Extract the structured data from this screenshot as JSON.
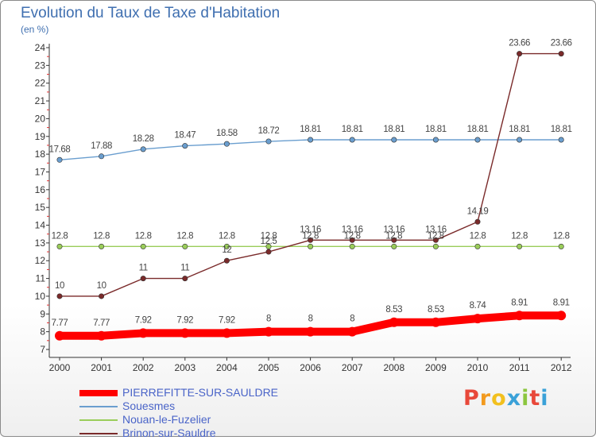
{
  "title": "Evolution du Taux de Taxe d'Habitation",
  "subtitle": "(en %)",
  "chart_data": {
    "type": "line",
    "title": "Evolution du Taux de Taxe d'Habitation",
    "ylabel": "(en %)",
    "xlabel": "",
    "x": [
      "2000",
      "2001",
      "2002",
      "2003",
      "2004",
      "2005",
      "2006",
      "2007",
      "2008",
      "2009",
      "2010",
      "2011",
      "2012"
    ],
    "ylim": [
      7,
      24
    ],
    "yticks": [
      "7",
      "8",
      "9",
      "10",
      "11",
      "12",
      "13",
      "14",
      "15",
      "16",
      "17",
      "18",
      "19",
      "20",
      "21",
      "22",
      "23",
      "24"
    ],
    "grid": false,
    "legend_position": "bottom-left",
    "series": [
      {
        "name": "PIERREFITTE-SUR-SAULDRE",
        "color": "#ff0000",
        "values": [
          7.77,
          7.77,
          7.92,
          7.92,
          7.92,
          8,
          8,
          8,
          8.53,
          8.53,
          8.74,
          8.91,
          8.91
        ],
        "labels": [
          "7.77",
          "7.77",
          "7.92",
          "7.92",
          "7.92",
          "8",
          "8",
          "8",
          "8.53",
          "8.53",
          "8.74",
          "8.91",
          "8.91"
        ]
      },
      {
        "name": "Souesmes",
        "color": "#6a9ecf",
        "values": [
          17.68,
          17.88,
          18.28,
          18.47,
          18.58,
          18.72,
          18.81,
          18.81,
          18.81,
          18.81,
          18.81,
          18.81,
          18.81
        ],
        "labels": [
          "17.68",
          "17.88",
          "18.28",
          "18.47",
          "18.58",
          "18.72",
          "18.81",
          "18.81",
          "18.81",
          "18.81",
          "18.81",
          "18.81",
          "18.81"
        ]
      },
      {
        "name": "Nouan-le-Fuzelier",
        "color": "#9acd5a",
        "values": [
          12.8,
          12.8,
          12.8,
          12.8,
          12.8,
          12.8,
          12.8,
          12.8,
          12.8,
          12.8,
          12.8,
          12.8,
          12.8
        ],
        "labels": [
          "12.8",
          "12.8",
          "12.8",
          "12.8",
          "12.8",
          "12.8",
          "12.8",
          "12.8",
          "12.8",
          "12.8",
          "12.8",
          "12.8",
          "12.8"
        ]
      },
      {
        "name": "Brinon-sur-Sauldre",
        "color": "#7a2a2a",
        "values": [
          10,
          10,
          11,
          11,
          12,
          12.5,
          13.16,
          13.16,
          13.16,
          13.16,
          14.19,
          23.66,
          23.66
        ],
        "labels": [
          "10",
          "10",
          "11",
          "11",
          "12",
          "12.5",
          "13.16",
          "13.16",
          "13.16",
          "13.16",
          "14.19",
          "23.66",
          "23.66"
        ]
      }
    ]
  },
  "logo": {
    "letters": [
      "P",
      "r",
      "o",
      "x",
      "i",
      "t",
      "i"
    ],
    "colors": [
      "#e8483a",
      "#f29a1e",
      "#f2c01e",
      "#3aa1d8",
      "#8cc63f",
      "#e8483a",
      "#3aa1d8"
    ]
  }
}
